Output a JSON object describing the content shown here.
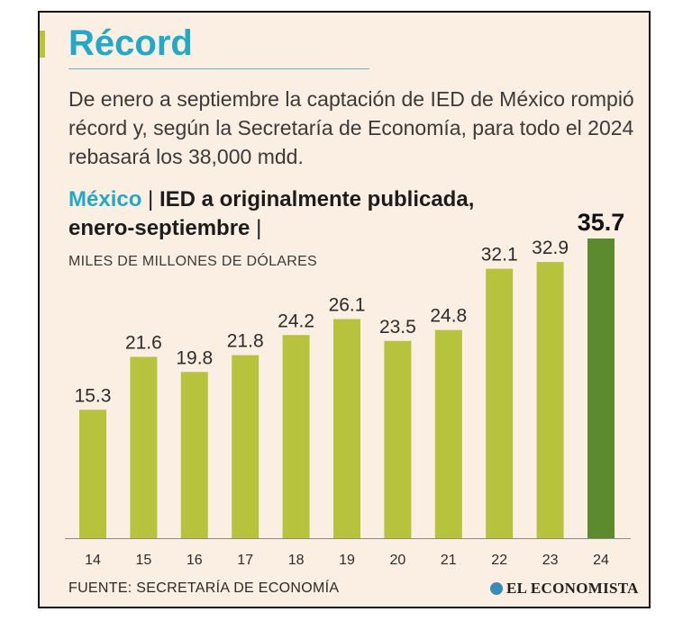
{
  "header": {
    "title": "Récord",
    "subtitle": "De enero a septiembre la captación de IED de México rompió récord y, según la Secretaría de Economía, para todo el 2024 rebasará los 38,000 mdd."
  },
  "chart_heading": {
    "country": "México",
    "separator_1": " | ",
    "topic": "IED a originalmente publicada, enero-septiembre",
    "separator_2": " |"
  },
  "units": "MILES DE MILLONES DE DÓLARES",
  "source": "FUENTE: SECRETARÍA DE ECONOMÍA",
  "brand": "EL ECONOMISTA",
  "colors": {
    "bar": "#b7c23d",
    "highlight_bar": "#5c8a2e",
    "title": "#22a9c8",
    "background": "#fbeee2"
  },
  "chart_data": {
    "type": "bar",
    "categories": [
      "14",
      "15",
      "16",
      "17",
      "18",
      "19",
      "20",
      "21",
      "22",
      "23",
      "24"
    ],
    "values": [
      15.3,
      21.6,
      19.8,
      21.8,
      24.2,
      26.1,
      23.5,
      24.8,
      32.1,
      32.9,
      35.7
    ],
    "value_labels": [
      "15.3",
      "21.6",
      "19.8",
      "21.8",
      "24.2",
      "26.1",
      "23.5",
      "24.8",
      "32.1",
      "32.9",
      "35.7"
    ],
    "highlight_index": 10,
    "ylim": [
      0,
      35.7
    ],
    "grid": false
  }
}
